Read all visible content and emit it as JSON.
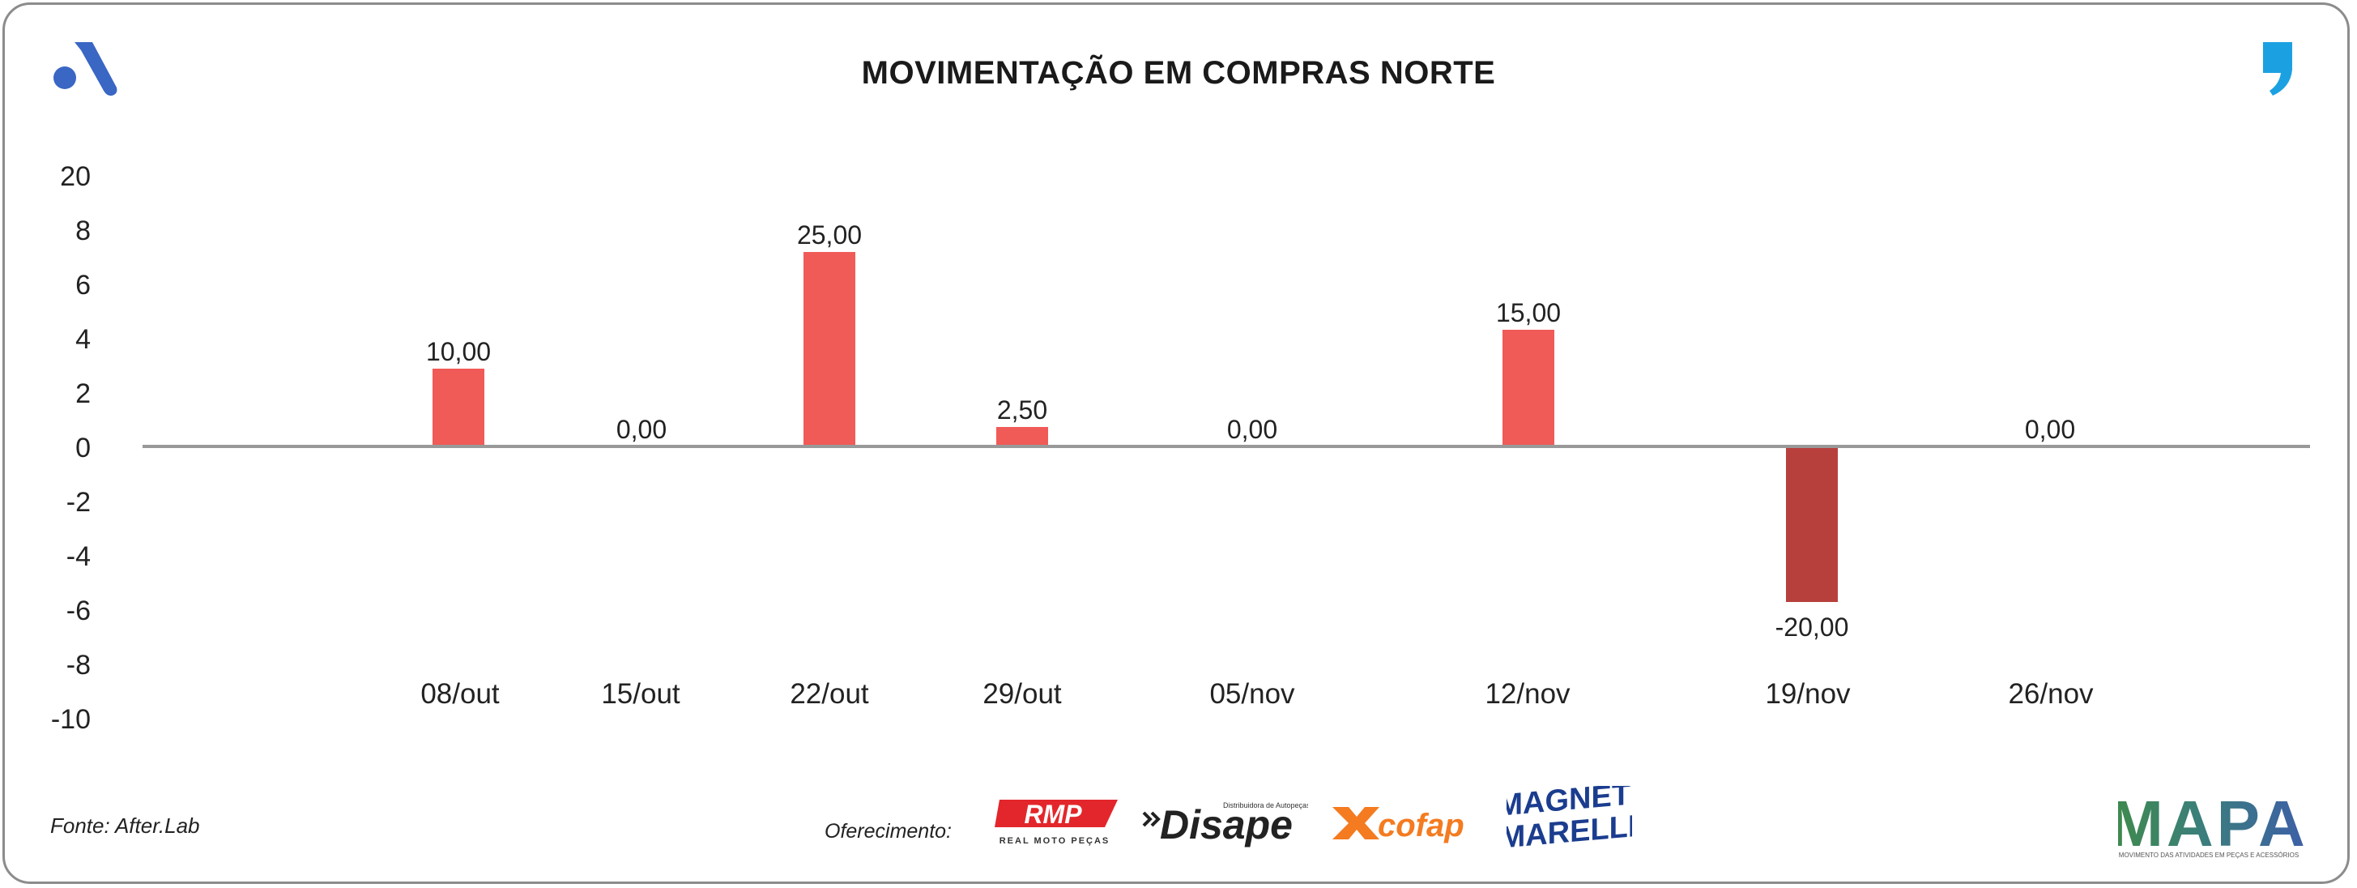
{
  "header": {
    "title": "MOVIMENTAÇÃO EM COMPRAS NORTE"
  },
  "footer": {
    "source": "Fonte: After.Lab",
    "sponsor_label": "Oferecimento:",
    "sponsors": [
      "RMP",
      "REAL MOTO PEÇAS",
      "Disape",
      "Distribuidora de Autopeças",
      "cofap",
      "MAGNETI",
      "MARELLI"
    ],
    "brand": "MAPA",
    "brand_tagline": "MOVIMENTO DAS ATIVIDADES EM PEÇAS E ACESSÓRIOS"
  },
  "colors": {
    "positive_bar": "#f05a57",
    "negative_bar": "#b7403d",
    "axis": "#999999",
    "brand_blue": "#3a66c4",
    "quote_blue": "#1ba1e2",
    "rmp_red": "#e3262b",
    "cofap_orange": "#f47b20",
    "magneti_blue": "#1b3d8f"
  },
  "chart_data": {
    "type": "bar",
    "title": "MOVIMENTAÇÃO EM COMPRAS NORTE",
    "categories": [
      "08/out",
      "15/out",
      "22/out",
      "29/out",
      "05/nov",
      "12/nov",
      "19/nov",
      "26/nov"
    ],
    "values": [
      10,
      0,
      25,
      2.5,
      0,
      15,
      -20,
      0
    ],
    "value_labels": [
      "10,00",
      "0,00",
      "25,00",
      "2,50",
      "0,00",
      "15,00",
      "-20,00",
      "0,00"
    ],
    "ytick_labels": [
      "20",
      "8",
      "6",
      "4",
      "2",
      "0",
      "-2",
      "-4",
      "-6",
      "-8",
      "-10"
    ],
    "legend": "none",
    "grid": false
  }
}
